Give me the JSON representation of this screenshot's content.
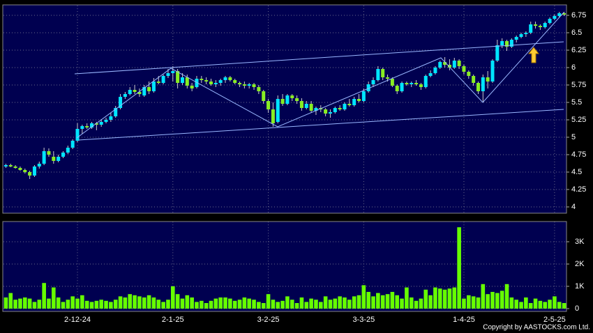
{
  "chart_data": {
    "type": "candlestick",
    "categories": [
      null,
      null,
      null,
      null,
      null,
      null,
      null,
      null,
      null,
      null,
      null,
      null,
      null,
      null,
      null,
      "2-12-24",
      null,
      null,
      null,
      null,
      null,
      null,
      null,
      null,
      null,
      null,
      null,
      null,
      null,
      null,
      null,
      null,
      null,
      null,
      null,
      "2-1-25",
      null,
      null,
      null,
      null,
      null,
      null,
      null,
      null,
      null,
      null,
      null,
      null,
      null,
      null,
      null,
      null,
      null,
      null,
      null,
      "3-2-25",
      null,
      null,
      null,
      null,
      null,
      null,
      null,
      null,
      null,
      null,
      null,
      null,
      null,
      null,
      null,
      null,
      null,
      null,
      null,
      "3-3-25",
      null,
      null,
      null,
      null,
      null,
      null,
      null,
      null,
      null,
      null,
      null,
      null,
      null,
      null,
      null,
      null,
      null,
      null,
      null,
      null,
      "1-4-25",
      null,
      null,
      null,
      null,
      null,
      null,
      null,
      null,
      null,
      null,
      null,
      null,
      null,
      null,
      null,
      null,
      null,
      null,
      "2-5-25",
      null,
      null
    ],
    "open": [
      4.58,
      4.6,
      4.58,
      4.56,
      4.53,
      4.5,
      4.45,
      4.58,
      4.62,
      4.8,
      4.72,
      4.66,
      4.72,
      4.78,
      4.85,
      4.95,
      5.12,
      5.16,
      5.14,
      5.2,
      5.18,
      5.22,
      5.25,
      5.3,
      5.42,
      5.58,
      5.62,
      5.68,
      5.65,
      5.6,
      5.72,
      5.66,
      5.8,
      5.78,
      5.88,
      5.92,
      5.95,
      5.78,
      5.86,
      5.74,
      5.72,
      5.84,
      5.82,
      5.8,
      5.76,
      5.78,
      5.82,
      5.86,
      5.82,
      5.78,
      5.76,
      5.74,
      5.76,
      5.72,
      5.66,
      5.52,
      5.4,
      5.22,
      5.55,
      5.48,
      5.6,
      5.56,
      5.52,
      5.42,
      5.48,
      5.38,
      5.42,
      5.4,
      5.34,
      5.36,
      5.42,
      5.4,
      5.48,
      5.46,
      5.55,
      5.52,
      5.66,
      5.76,
      5.82,
      5.98,
      5.86,
      5.84,
      5.74,
      5.66,
      5.78,
      5.76,
      5.78,
      5.76,
      5.72,
      5.88,
      5.92,
      6.0,
      6.08,
      6.04,
      6.0,
      6.1,
      6.02,
      5.94,
      5.88,
      5.78,
      5.66,
      5.86,
      5.8,
      6.1,
      6.32,
      6.38,
      6.3,
      6.4,
      6.44,
      6.48,
      6.5,
      6.62,
      6.6,
      6.58,
      6.64,
      6.7,
      6.74,
      6.78
    ],
    "high": [
      4.62,
      4.62,
      4.6,
      4.58,
      4.55,
      4.52,
      4.6,
      4.65,
      4.85,
      4.84,
      4.8,
      4.75,
      4.8,
      4.88,
      4.97,
      5.2,
      5.18,
      5.2,
      5.22,
      5.22,
      5.26,
      5.28,
      5.35,
      5.45,
      5.62,
      5.65,
      5.72,
      5.75,
      5.7,
      5.75,
      5.8,
      5.85,
      5.88,
      5.9,
      5.98,
      6.02,
      5.98,
      5.92,
      5.9,
      5.78,
      5.88,
      5.88,
      5.86,
      5.84,
      5.82,
      5.84,
      5.88,
      5.88,
      5.84,
      5.8,
      5.8,
      5.78,
      5.78,
      5.75,
      5.68,
      5.55,
      5.5,
      5.6,
      5.62,
      5.62,
      5.62,
      5.6,
      5.56,
      5.52,
      5.52,
      5.44,
      5.46,
      5.42,
      5.4,
      5.44,
      5.46,
      5.5,
      5.55,
      5.58,
      5.62,
      5.7,
      5.8,
      5.86,
      6.02,
      6.0,
      5.9,
      5.86,
      5.76,
      5.8,
      5.8,
      5.8,
      5.82,
      5.78,
      5.9,
      5.96,
      6.02,
      6.1,
      6.15,
      6.12,
      6.14,
      6.12,
      6.04,
      5.96,
      5.9,
      5.8,
      5.9,
      5.95,
      6.12,
      6.4,
      6.42,
      6.4,
      6.42,
      6.46,
      6.5,
      6.52,
      6.66,
      6.66,
      6.62,
      6.66,
      6.72,
      6.76,
      6.8,
      6.8
    ],
    "low": [
      4.56,
      4.57,
      4.55,
      4.52,
      4.48,
      4.4,
      4.43,
      4.55,
      4.6,
      4.72,
      4.62,
      4.64,
      4.7,
      4.76,
      4.83,
      4.93,
      5.05,
      5.12,
      5.12,
      5.1,
      5.15,
      5.2,
      5.22,
      5.28,
      5.4,
      5.55,
      5.6,
      5.62,
      5.58,
      5.58,
      5.62,
      5.64,
      5.76,
      5.76,
      5.85,
      5.8,
      5.7,
      5.75,
      5.7,
      5.66,
      5.7,
      5.78,
      5.76,
      5.74,
      5.72,
      5.74,
      5.78,
      5.8,
      5.76,
      5.72,
      5.7,
      5.7,
      5.68,
      5.62,
      5.48,
      5.35,
      5.15,
      5.2,
      5.45,
      5.46,
      5.52,
      5.48,
      5.38,
      5.4,
      5.35,
      5.32,
      5.36,
      5.3,
      5.28,
      5.34,
      5.38,
      5.38,
      5.44,
      5.44,
      5.5,
      5.5,
      5.64,
      5.72,
      5.8,
      5.82,
      5.8,
      5.72,
      5.62,
      5.64,
      5.74,
      5.72,
      5.74,
      5.68,
      5.7,
      5.86,
      5.9,
      5.98,
      6.0,
      5.96,
      5.98,
      5.98,
      5.9,
      5.84,
      5.74,
      5.62,
      5.5,
      5.7,
      5.78,
      6.08,
      6.28,
      6.24,
      6.28,
      6.36,
      6.42,
      6.44,
      6.48,
      6.56,
      6.54,
      6.56,
      6.62,
      6.68,
      6.72,
      6.74
    ],
    "close": [
      4.6,
      4.58,
      4.56,
      4.53,
      4.5,
      4.45,
      4.58,
      4.62,
      4.8,
      4.75,
      4.66,
      4.72,
      4.78,
      4.85,
      4.95,
      5.12,
      5.16,
      5.14,
      5.2,
      5.18,
      5.22,
      5.25,
      5.3,
      5.42,
      5.58,
      5.62,
      5.68,
      5.65,
      5.62,
      5.72,
      5.66,
      5.8,
      5.78,
      5.88,
      5.92,
      5.95,
      5.78,
      5.86,
      5.74,
      5.7,
      5.84,
      5.82,
      5.8,
      5.76,
      5.78,
      5.82,
      5.86,
      5.82,
      5.78,
      5.76,
      5.74,
      5.76,
      5.72,
      5.66,
      5.52,
      5.4,
      5.2,
      5.55,
      5.48,
      5.6,
      5.56,
      5.52,
      5.42,
      5.48,
      5.38,
      5.42,
      5.4,
      5.34,
      5.36,
      5.42,
      5.4,
      5.48,
      5.46,
      5.55,
      5.52,
      5.66,
      5.76,
      5.82,
      5.98,
      5.86,
      5.84,
      5.74,
      5.66,
      5.78,
      5.76,
      5.78,
      5.76,
      5.72,
      5.88,
      5.92,
      6.0,
      6.08,
      6.04,
      6.0,
      6.1,
      6.02,
      5.94,
      5.88,
      5.78,
      5.66,
      5.86,
      5.8,
      6.1,
      6.32,
      6.38,
      6.3,
      6.4,
      6.44,
      6.48,
      6.5,
      6.62,
      6.6,
      6.58,
      6.64,
      6.7,
      6.74,
      6.78,
      6.76
    ],
    "volume": [
      500,
      700,
      400,
      450,
      500,
      450,
      300,
      400,
      1150,
      450,
      950,
      500,
      300,
      400,
      550,
      450,
      600,
      350,
      300,
      350,
      400,
      350,
      300,
      400,
      550,
      500,
      650,
      600,
      550,
      500,
      600,
      500,
      400,
      300,
      400,
      1000,
      650,
      450,
      600,
      500,
      300,
      350,
      250,
      350,
      450,
      500,
      500,
      450,
      350,
      400,
      500,
      450,
      400,
      300,
      250,
      650,
      400,
      300,
      350,
      550,
      400,
      250,
      500,
      300,
      450,
      400,
      300,
      550,
      400,
      450,
      550,
      500,
      400,
      550,
      600,
      1050,
      750,
      550,
      700,
      600,
      650,
      750,
      600,
      450,
      950,
      500,
      350,
      450,
      850,
      600,
      950,
      900,
      850,
      900,
      950,
      3650,
      450,
      600,
      550,
      500,
      1100,
      650,
      750,
      700,
      800,
      1100,
      500,
      400,
      300,
      500,
      250,
      450,
      350,
      300,
      400,
      550,
      300,
      250
    ],
    "up_color": "#00e5ff",
    "down_color": "#88ee22",
    "volume_color": "#66ff00",
    "ylim": [
      3.92,
      6.89
    ],
    "yticks": [
      4,
      4.25,
      4.5,
      4.75,
      5,
      5.25,
      5.5,
      5.75,
      6,
      6.25,
      6.5,
      6.75
    ],
    "y2lim": [
      0,
      3900
    ],
    "y2ticks": [
      0,
      {
        "value": 1000,
        "label": "1K"
      },
      {
        "value": 2000,
        "label": "2K"
      },
      {
        "value": 3000,
        "label": "3K"
      }
    ],
    "grid": true,
    "copyright": "Copyright by AASTOCKS.com Ltd."
  }
}
